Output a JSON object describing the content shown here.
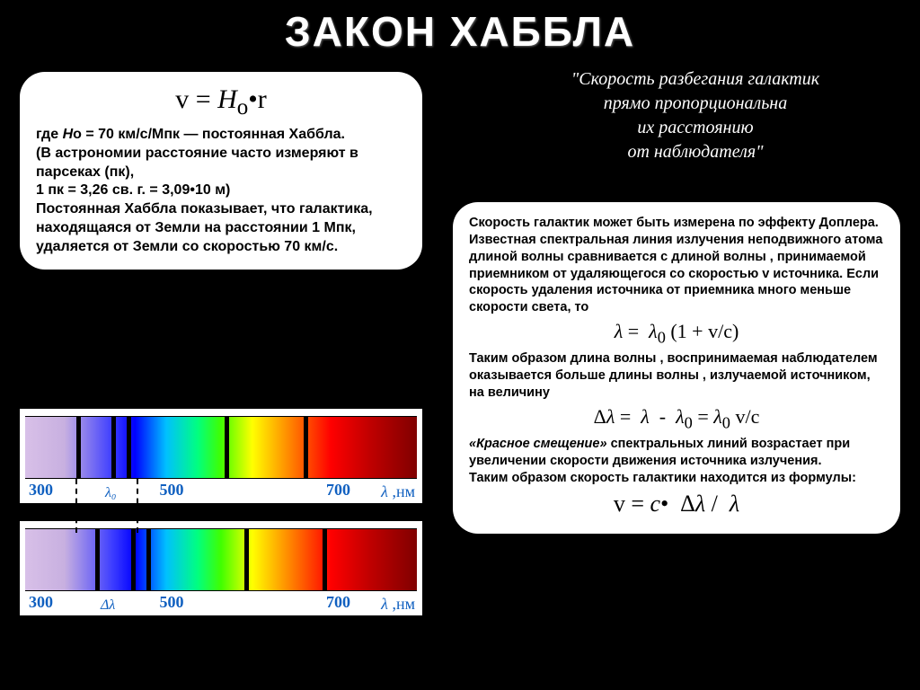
{
  "title": "ЗАКОН ХАББЛА",
  "quote_l1": "\"Скорость разбегания галактик",
  "quote_l2": "прямо пропорциональна",
  "quote_l3": "их расстоянию",
  "quote_l4": "от наблюдателя\"",
  "left_box": {
    "formula": "v = H₀•r",
    "p1": "где Hо = 70 км/с/Мпк — постоянная Хаббла.",
    "p2": "(В астрономии расстояние часто измеряют в парсеках (пк),",
    "p3": "1 пк = 3,26 св. г. = 3,09•10  м)",
    "p4": " Постоянная Хаббла показывает, что галактика, находящаяся от Земли на расстоянии 1 Мпк, удаляется от Земли со скоростью 70 км/с."
  },
  "right_box": {
    "p1": "Скорость галактик может быть измерена по эффекту Доплера. Известная спектральная линия излучения неподвижного атома длиной  волны  сравнивается с длиной  волны , принимаемой приемником от удаляющегося со скоростью v источника. Если скорость удаления источника от приемника много меньше скорости света, то",
    "f1": "λ =  λ₀ (1 + v/c)",
    "p2": "Таким образом длина волны , воспринимаемая наблюдателем оказывается больше длины волны , излучаемой источником, на величину",
    "f2": "Δλ =  λ  -  λ₀ = λ₀ v/c",
    "p3a": "«Красное смещение»",
    "p3b": " спектральных линий возрастает при увеличении скорости движения источника излучения.",
    "p4": "Таким образом скорость галактики находится из формулы:",
    "f3": "v = c•  Δλ /  λ"
  },
  "spectrum": {
    "ticks": [
      "300",
      "500",
      "700"
    ],
    "axis_label": "λ ,нм",
    "lambda0": "λ₀",
    "delta_lambda": "Δλ",
    "top_lines_pct": [
      13,
      22,
      26,
      51,
      71
    ],
    "bot_lines_pct": [
      18,
      27,
      31,
      56,
      76
    ],
    "colors": {
      "axis_text": "#1060c0",
      "line": "#000000"
    }
  }
}
